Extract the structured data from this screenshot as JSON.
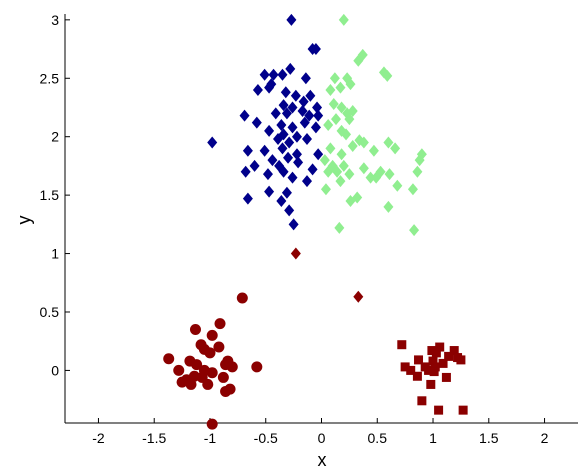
{
  "chart_data": {
    "type": "scatter",
    "title": "",
    "xlabel": "x",
    "ylabel": "y",
    "xlim": [
      -2.3,
      2.3
    ],
    "ylim": [
      -0.45,
      3.05
    ],
    "grid": false,
    "legend": "none",
    "x_ticks": [
      "-2",
      "-1.5",
      "-1",
      "-0.5",
      "0",
      "0.5",
      "1",
      "1.5",
      "2"
    ],
    "y_ticks": [
      "0",
      "0.5",
      "1",
      "1.5",
      "2",
      "2.5",
      "3"
    ],
    "series": [
      {
        "color": "#00008b",
        "marker": "diamond",
        "points": [
          [
            -0.27,
            3.0
          ],
          [
            -0.08,
            2.75
          ],
          [
            -0.05,
            2.75
          ],
          [
            -0.28,
            2.58
          ],
          [
            -0.51,
            2.53
          ],
          [
            -0.43,
            2.53
          ],
          [
            -0.35,
            2.53
          ],
          [
            -0.14,
            2.5
          ],
          [
            -0.45,
            2.45
          ],
          [
            -0.57,
            2.4
          ],
          [
            -0.47,
            2.42
          ],
          [
            -0.32,
            2.38
          ],
          [
            -0.23,
            2.35
          ],
          [
            -0.1,
            2.35
          ],
          [
            -0.16,
            2.3
          ],
          [
            -0.34,
            2.27
          ],
          [
            -0.26,
            2.25
          ],
          [
            -0.04,
            2.25
          ],
          [
            -0.41,
            2.2
          ],
          [
            -0.17,
            2.22
          ],
          [
            -0.69,
            2.18
          ],
          [
            -0.31,
            2.2
          ],
          [
            -0.11,
            2.18
          ],
          [
            -0.03,
            2.18
          ],
          [
            -0.58,
            2.12
          ],
          [
            -0.36,
            2.1
          ],
          [
            -0.26,
            2.08
          ],
          [
            -0.15,
            2.12
          ],
          [
            -0.47,
            2.05
          ],
          [
            -0.34,
            2.02
          ],
          [
            -0.05,
            2.08
          ],
          [
            -0.39,
            1.98
          ],
          [
            -0.29,
            1.95
          ],
          [
            -0.22,
            2.0
          ],
          [
            -0.13,
            1.98
          ],
          [
            -0.98,
            1.95
          ],
          [
            -0.66,
            1.88
          ],
          [
            -0.51,
            1.88
          ],
          [
            -0.35,
            1.9
          ],
          [
            -0.44,
            1.8
          ],
          [
            -0.22,
            1.85
          ],
          [
            -0.3,
            1.82
          ],
          [
            -0.03,
            1.85
          ],
          [
            -0.6,
            1.75
          ],
          [
            -0.38,
            1.75
          ],
          [
            -0.21,
            1.78
          ],
          [
            -0.68,
            1.7
          ],
          [
            -0.48,
            1.68
          ],
          [
            -0.34,
            1.7
          ],
          [
            -0.08,
            1.72
          ],
          [
            -0.26,
            1.65
          ],
          [
            -0.13,
            1.62
          ],
          [
            -0.47,
            1.53
          ],
          [
            -0.31,
            1.52
          ],
          [
            -0.66,
            1.47
          ],
          [
            -0.36,
            1.45
          ],
          [
            -0.29,
            1.37
          ],
          [
            -0.25,
            1.25
          ]
        ]
      },
      {
        "color": "#90ee90",
        "marker": "diamond",
        "points": [
          [
            0.2,
            3.0
          ],
          [
            0.37,
            2.7
          ],
          [
            0.33,
            2.65
          ],
          [
            0.56,
            2.55
          ],
          [
            0.59,
            2.52
          ],
          [
            0.12,
            2.5
          ],
          [
            0.23,
            2.5
          ],
          [
            0.26,
            2.45
          ],
          [
            0.17,
            2.42
          ],
          [
            0.08,
            2.4
          ],
          [
            0.11,
            2.28
          ],
          [
            0.18,
            2.25
          ],
          [
            0.28,
            2.22
          ],
          [
            0.23,
            2.2
          ],
          [
            0.13,
            2.15
          ],
          [
            0.25,
            2.15
          ],
          [
            0.06,
            2.1
          ],
          [
            0.18,
            2.05
          ],
          [
            0.22,
            2.02
          ],
          [
            0.34,
            1.97
          ],
          [
            0.38,
            1.95
          ],
          [
            0.6,
            1.95
          ],
          [
            0.08,
            1.9
          ],
          [
            0.28,
            1.92
          ],
          [
            0.66,
            1.9
          ],
          [
            0.47,
            1.88
          ],
          [
            0.18,
            1.85
          ],
          [
            0.9,
            1.85
          ],
          [
            0.03,
            1.8
          ],
          [
            0.88,
            1.8
          ],
          [
            0.1,
            1.75
          ],
          [
            0.2,
            1.75
          ],
          [
            0.38,
            1.73
          ],
          [
            0.06,
            1.7
          ],
          [
            0.14,
            1.7
          ],
          [
            0.53,
            1.7
          ],
          [
            0.61,
            1.68
          ],
          [
            0.25,
            1.68
          ],
          [
            0.86,
            1.7
          ],
          [
            0.44,
            1.65
          ],
          [
            0.49,
            1.65
          ],
          [
            0.17,
            1.62
          ],
          [
            0.68,
            1.58
          ],
          [
            0.04,
            1.55
          ],
          [
            0.82,
            1.55
          ],
          [
            0.32,
            1.48
          ],
          [
            0.26,
            1.45
          ],
          [
            0.6,
            1.4
          ],
          [
            0.83,
            1.2
          ],
          [
            0.16,
            1.22
          ]
        ]
      },
      {
        "color": "#8b0000",
        "marker": "diamond",
        "points": [
          [
            -0.23,
            1.0
          ],
          [
            0.33,
            0.63
          ]
        ]
      },
      {
        "color": "#8b0000",
        "marker": "circle",
        "points": [
          [
            -0.71,
            0.62
          ],
          [
            -0.91,
            0.4
          ],
          [
            -1.13,
            0.35
          ],
          [
            -0.98,
            0.3
          ],
          [
            -1.08,
            0.22
          ],
          [
            -1.05,
            0.18
          ],
          [
            -0.92,
            0.2
          ],
          [
            -1.0,
            0.15
          ],
          [
            -1.37,
            0.1
          ],
          [
            -1.18,
            0.08
          ],
          [
            -1.12,
            0.05
          ],
          [
            -0.86,
            0.05
          ],
          [
            -0.84,
            0.08
          ],
          [
            -0.8,
            0.03
          ],
          [
            -0.58,
            0.03
          ],
          [
            -1.28,
            0.0
          ],
          [
            -1.05,
            0.0
          ],
          [
            -0.98,
            -0.02
          ],
          [
            -1.14,
            -0.05
          ],
          [
            -1.21,
            -0.08
          ],
          [
            -1.07,
            -0.06
          ],
          [
            -0.88,
            -0.06
          ],
          [
            -1.25,
            -0.1
          ],
          [
            -1.17,
            -0.12
          ],
          [
            -1.02,
            -0.12
          ],
          [
            -0.82,
            -0.16
          ],
          [
            -0.86,
            -0.18
          ],
          [
            -0.98,
            -0.46
          ]
        ]
      },
      {
        "color": "#8b0000",
        "marker": "square",
        "points": [
          [
            0.72,
            0.22
          ],
          [
            1.06,
            0.2
          ],
          [
            0.99,
            0.17
          ],
          [
            1.19,
            0.17
          ],
          [
            1.03,
            0.15
          ],
          [
            1.14,
            0.12
          ],
          [
            1.22,
            0.11
          ],
          [
            1.25,
            0.09
          ],
          [
            0.87,
            0.09
          ],
          [
            1.0,
            0.08
          ],
          [
            1.09,
            0.06
          ],
          [
            0.75,
            0.03
          ],
          [
            0.93,
            0.03
          ],
          [
            1.02,
            0.03
          ],
          [
            0.8,
            0.0
          ],
          [
            0.96,
            0.0
          ],
          [
            1.01,
            -0.01
          ],
          [
            0.86,
            -0.05
          ],
          [
            1.12,
            -0.06
          ],
          [
            0.98,
            -0.12
          ],
          [
            0.9,
            -0.26
          ],
          [
            1.05,
            -0.34
          ],
          [
            1.27,
            -0.34
          ]
        ]
      }
    ]
  }
}
